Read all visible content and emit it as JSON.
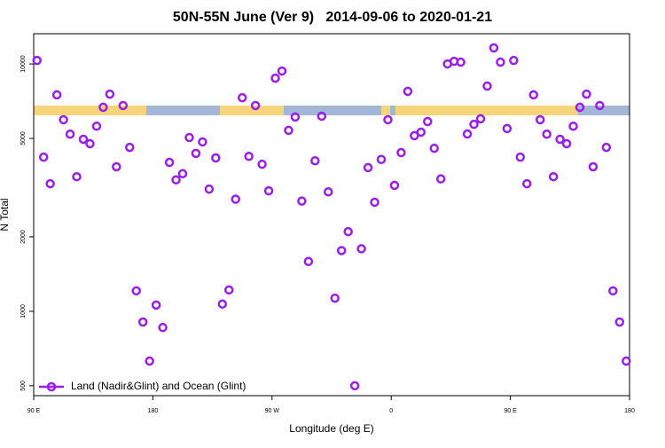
{
  "chart_data": {
    "type": "scatter",
    "title": "50N-55N June (Ver 9)   2014-09-06 to 2020-01-21",
    "xlabel": "Longitude (deg E)",
    "ylabel": "N Total",
    "yscale": "log",
    "legend": "bottom-left",
    "xlim": [
      90,
      540
    ],
    "xticks": [
      {
        "value": 90,
        "label": "90 E"
      },
      {
        "value": 180,
        "label": "180"
      },
      {
        "value": 270,
        "label": "90 W"
      },
      {
        "value": 360,
        "label": "0"
      },
      {
        "value": 450,
        "label": "90 E"
      },
      {
        "value": 540,
        "label": "180"
      }
    ],
    "ylim": [
      456,
      13250
    ],
    "yticks": [
      500,
      1000,
      2000,
      5000,
      10000
    ],
    "series": [
      {
        "name": "Land (Nadir&Glint) and Ocean (Glint)",
        "color": "#9b1ee8",
        "x": [
          92.5,
          97.5,
          102.5,
          107.5,
          112.5,
          117.5,
          122.5,
          127.5,
          132.5,
          137.5,
          142.5,
          147.5,
          152.5,
          157.5,
          162.5,
          167.5,
          172.5,
          177.5,
          182.5,
          187.5,
          192.5,
          197.5,
          202.5,
          207.5,
          212.5,
          217.5,
          222.5,
          227.5,
          232.5,
          237.5,
          242.5,
          247.5,
          252.5,
          257.5,
          262.5,
          267.5,
          272.5,
          277.5,
          282.5,
          287.5,
          292.5,
          297.5,
          302.5,
          307.5,
          312.5,
          317.5,
          322.5,
          327.5,
          332.5,
          337.5,
          342.5,
          347.5,
          352.5,
          357.5,
          362.5,
          367.5,
          372.5,
          377.5,
          382.5,
          387.5,
          392.5,
          397.5,
          402.5,
          407.5,
          412.5,
          417.5,
          422.5,
          427.5,
          432.5,
          437.5,
          442.5,
          447.5,
          452.5,
          457.5,
          462.5,
          467.5,
          472.5,
          477.5,
          482.5,
          487.5,
          492.5,
          497.5,
          502.5,
          507.5,
          512.5,
          517.5,
          522.5,
          527.5,
          532.5,
          537.5
        ],
        "values": [
          10330,
          4200,
          3280,
          7500,
          5950,
          5200,
          3500,
          4960,
          4760,
          5600,
          6680,
          7550,
          3840,
          6790,
          4600,
          1210,
          905,
          629,
          1060,
          860,
          4000,
          3400,
          3600,
          5040,
          4350,
          4840,
          3120,
          4170,
          1070,
          1220,
          2840,
          7300,
          4230,
          6790,
          3930,
          3070,
          8760,
          9360,
          5390,
          6100,
          2790,
          1590,
          4060,
          6150,
          3040,
          1130,
          1760,
          2100,
          500,
          1790,
          3810,
          2760,
          4110,
          5950,
          3230,
          4380,
          7750,
          5130,
          5300,
          5850,
          4560,
          3430,
          10000,
          10250,
          10170,
          5210,
          5700,
          6000,
          8140,
          11610,
          10170,
          5480,
          10330,
          4200,
          3280,
          7500,
          5950,
          5200,
          3500,
          4960,
          4760,
          5600,
          6680,
          7550,
          3840,
          6790,
          4600,
          1210,
          905,
          629
        ]
      }
    ]
  }
}
